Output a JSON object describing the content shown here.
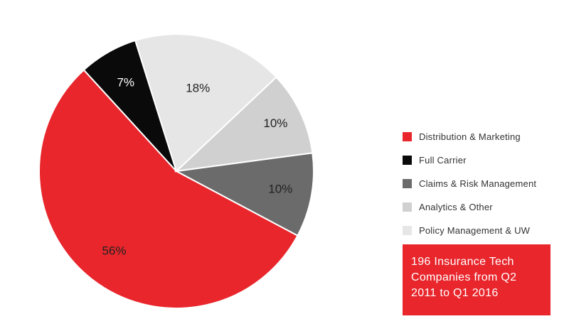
{
  "chart_data": {
    "type": "pie",
    "title": "",
    "slices": [
      {
        "label": "Distribution & Marketing",
        "value": 56,
        "text": "56%",
        "color": "#e8262c",
        "label_color": "#222222"
      },
      {
        "label": "Full Carrier",
        "value": 7,
        "text": "7%",
        "color": "#0a0a0a",
        "label_color": "#ffffff"
      },
      {
        "label": "Policy Management & UW",
        "value": 18,
        "text": "18%",
        "color": "#e6e6e6",
        "label_color": "#222222"
      },
      {
        "label": "Analytics & Other",
        "value": 10,
        "text": "10%",
        "color": "#d0d0d0",
        "label_color": "#222222"
      },
      {
        "label": "Claims & Risk Management",
        "value": 10,
        "text": "10%",
        "color": "#6b6b6b",
        "label_color": "#222222"
      }
    ],
    "legend": {
      "placement": "right",
      "items": [
        {
          "label": "Distribution & Marketing",
          "color": "#e8262c"
        },
        {
          "label": "Full Carrier",
          "color": "#0a0a0a"
        },
        {
          "label": "Claims & Risk Management",
          "color": "#6b6b6b"
        },
        {
          "label": "Analytics & Other",
          "color": "#d0d0d0"
        },
        {
          "label": "Policy Management & UW",
          "color": "#e6e6e6"
        }
      ]
    }
  },
  "note": {
    "lines": [
      "196 Insurance Tech",
      "Companies from Q2",
      "2011 to Q1 2016"
    ],
    "color": "#e8262c"
  }
}
